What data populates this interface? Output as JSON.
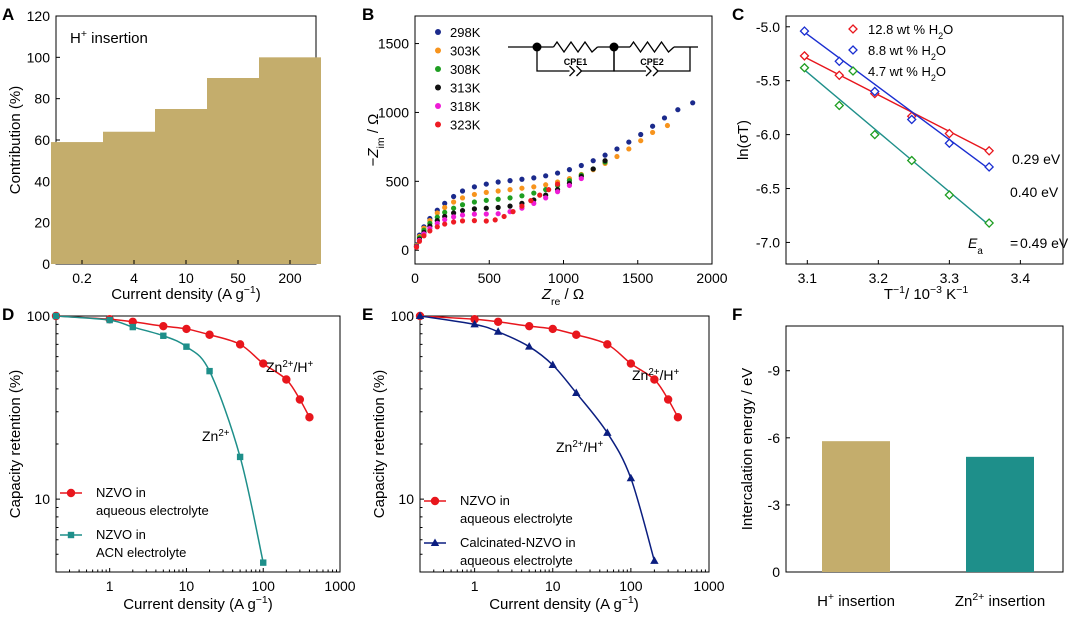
{
  "colors": {
    "tan": "#c4ad6c",
    "teal": "#1e8f8a",
    "red": "#e8161d",
    "navy": "#0b1e80",
    "t298": "#1b2a8c",
    "t303": "#f7941d",
    "t308": "#1f9e22",
    "t313": "#111111",
    "t318": "#ee1cd6",
    "t323": "#ee1c24",
    "c_red": "#e8161d",
    "c_blue": "#1a2ed1",
    "c_green": "#1f9e22"
  },
  "chart_data": [
    {
      "panel": "A",
      "type": "bar",
      "title": "H⁺ insertion",
      "categories": [
        "0.2",
        "4",
        "10",
        "50",
        "200"
      ],
      "values": [
        59,
        64,
        75,
        90,
        100
      ],
      "xlabel": "Current density (A g⁻¹)",
      "ylabel": "Contribution (%)",
      "ylim": [
        0,
        120
      ],
      "yticks": [
        "0",
        "20",
        "40",
        "60",
        "80",
        "100",
        "120"
      ]
    },
    {
      "panel": "B",
      "type": "scatter",
      "xlabel": "Z_re / Ω",
      "ylabel": "−Z_im / Ω",
      "xlim": [
        0,
        2000
      ],
      "ylim": [
        -100,
        1700
      ],
      "xticks": [
        "0",
        "500",
        "1000",
        "1500",
        "2000"
      ],
      "yticks": [
        "0",
        "500",
        "1000",
        "1500"
      ],
      "circuit_labels": [
        "CPE1",
        "CPE2"
      ],
      "series": [
        {
          "name": "298K",
          "points": [
            [
              10,
              40
            ],
            [
              30,
              110
            ],
            [
              60,
              170
            ],
            [
              100,
              230
            ],
            [
              150,
              290
            ],
            [
              200,
              340
            ],
            [
              260,
              390
            ],
            [
              320,
              430
            ],
            [
              400,
              460
            ],
            [
              480,
              480
            ],
            [
              560,
              495
            ],
            [
              640,
              505
            ],
            [
              720,
              515
            ],
            [
              800,
              525
            ],
            [
              880,
              540
            ],
            [
              960,
              560
            ],
            [
              1040,
              585
            ],
            [
              1120,
              615
            ],
            [
              1200,
              650
            ],
            [
              1280,
              690
            ],
            [
              1360,
              735
            ],
            [
              1440,
              785
            ],
            [
              1520,
              840
            ],
            [
              1600,
              900
            ],
            [
              1680,
              960
            ],
            [
              1770,
              1020
            ],
            [
              1870,
              1070
            ]
          ]
        },
        {
          "name": "303K",
          "points": [
            [
              10,
              35
            ],
            [
              30,
              100
            ],
            [
              60,
              160
            ],
            [
              100,
              215
            ],
            [
              150,
              270
            ],
            [
              200,
              310
            ],
            [
              260,
              350
            ],
            [
              320,
              380
            ],
            [
              400,
              405
            ],
            [
              480,
              420
            ],
            [
              560,
              430
            ],
            [
              640,
              440
            ],
            [
              720,
              450
            ],
            [
              800,
              460
            ],
            [
              880,
              475
            ],
            [
              960,
              495
            ],
            [
              1040,
              520
            ],
            [
              1120,
              550
            ],
            [
              1200,
              585
            ],
            [
              1280,
              630
            ],
            [
              1360,
              680
            ],
            [
              1440,
              735
            ],
            [
              1520,
              795
            ],
            [
              1600,
              855
            ],
            [
              1700,
              905
            ]
          ]
        },
        {
          "name": "308K",
          "points": [
            [
              10,
              30
            ],
            [
              30,
              90
            ],
            [
              60,
              145
            ],
            [
              100,
              195
            ],
            [
              150,
              240
            ],
            [
              200,
              275
            ],
            [
              260,
              305
            ],
            [
              320,
              330
            ],
            [
              400,
              350
            ],
            [
              480,
              362
            ],
            [
              560,
              370
            ],
            [
              640,
              380
            ],
            [
              720,
              395
            ],
            [
              800,
              415
            ],
            [
              880,
              440
            ],
            [
              960,
              470
            ],
            [
              1040,
              505
            ],
            [
              1120,
              545
            ],
            [
              1200,
              590
            ],
            [
              1280,
              640
            ]
          ]
        },
        {
          "name": "313K",
          "points": [
            [
              10,
              28
            ],
            [
              30,
              80
            ],
            [
              60,
              130
            ],
            [
              100,
              175
            ],
            [
              150,
              215
            ],
            [
              200,
              245
            ],
            [
              260,
              270
            ],
            [
              320,
              288
            ],
            [
              400,
              300
            ],
            [
              480,
              305
            ],
            [
              560,
              310
            ],
            [
              640,
              320
            ],
            [
              720,
              340
            ],
            [
              800,
              365
            ],
            [
              880,
              400
            ],
            [
              960,
              440
            ],
            [
              1040,
              485
            ],
            [
              1120,
              535
            ],
            [
              1200,
              590
            ],
            [
              1280,
              650
            ]
          ]
        },
        {
          "name": "318K",
          "points": [
            [
              10,
              25
            ],
            [
              30,
              72
            ],
            [
              60,
              118
            ],
            [
              100,
              158
            ],
            [
              150,
              195
            ],
            [
              200,
              222
            ],
            [
              260,
              242
            ],
            [
              320,
              255
            ],
            [
              400,
              262
            ],
            [
              480,
              263
            ],
            [
              560,
              265
            ],
            [
              640,
              280
            ],
            [
              720,
              305
            ],
            [
              800,
              340
            ],
            [
              880,
              380
            ],
            [
              960,
              425
            ],
            [
              1040,
              470
            ],
            [
              1120,
              520
            ]
          ]
        },
        {
          "name": "323K",
          "points": [
            [
              10,
              22
            ],
            [
              30,
              65
            ],
            [
              60,
              105
            ],
            [
              100,
              140
            ],
            [
              150,
              170
            ],
            [
              200,
              190
            ],
            [
              260,
              205
            ],
            [
              320,
              213
            ],
            [
              400,
              215
            ],
            [
              480,
              212
            ],
            [
              540,
              220
            ],
            [
              600,
              245
            ],
            [
              660,
              280
            ],
            [
              720,
              320
            ],
            [
              780,
              360
            ],
            [
              840,
              400
            ],
            [
              900,
              440
            ],
            [
              960,
              480
            ]
          ]
        }
      ]
    },
    {
      "panel": "C",
      "type": "scatter",
      "xlabel": "T⁻¹/ 10⁻³ K⁻¹",
      "ylabel": "ln(σT)",
      "xlim": [
        3.07,
        3.46
      ],
      "ylim": [
        -7.2,
        -4.9
      ],
      "xticks": [
        "3.1",
        "3.2",
        "3.3",
        "3.4"
      ],
      "yticks": [
        "-5.0",
        "-5.5",
        "-6.0",
        "-6.5",
        "-7.0"
      ],
      "x": [
        3.096,
        3.145,
        3.195,
        3.247,
        3.3,
        3.356
      ],
      "series": [
        {
          "name": "12.8 wt % H₂O",
          "legend_main": "12.8 wt % H",
          "values": [
            -5.27,
            -5.45,
            -5.62,
            -5.83,
            -5.99,
            -6.15
          ],
          "fit": [
            [
              3.096,
              -5.28
            ],
            [
              3.356,
              -6.16
            ]
          ],
          "annotation": "0.29 eV"
        },
        {
          "name": "8.8 wt % H₂O",
          "legend_main": "8.8 wt % H",
          "values": [
            -5.04,
            -5.32,
            -5.6,
            -5.86,
            -6.08,
            -6.3
          ],
          "fit": [
            [
              3.096,
              -5.05
            ],
            [
              3.356,
              -6.32
            ]
          ],
          "annotation": "0.40 eV"
        },
        {
          "name": "4.7 wt % H₂O",
          "legend_main": "4.7 wt % H",
          "values": [
            -5.38,
            -5.73,
            -6.0,
            -6.24,
            -6.56,
            -6.82
          ],
          "fit": [
            [
              3.096,
              -5.4
            ],
            [
              3.356,
              -6.84
            ]
          ],
          "annotation": "0.49 eV"
        }
      ],
      "legend_sub": "2",
      "legend_tail": "O",
      "ea_symbol": "E",
      "ea_sub": "a",
      "ea_eq": " = 0.49 eV"
    },
    {
      "panel": "D",
      "type": "line",
      "xscale": "log",
      "yscale": "log",
      "xlabel": "Current density (A g⁻¹)",
      "ylabel": "Capacity retention (%)",
      "xlim": [
        0.2,
        1000
      ],
      "ylim": [
        4,
        100
      ],
      "xticks": [
        "1",
        "10",
        "100",
        "1000"
      ],
      "yticks": [
        "100",
        "10"
      ],
      "series": [
        {
          "name": "NZVO in aqueous electrolyte",
          "legend_lines": [
            "NZVO in",
            "aqueous electrolyte"
          ],
          "marker": "circle",
          "x": [
            0.2,
            1,
            2,
            5,
            10,
            20,
            50,
            100,
            200,
            300,
            400
          ],
          "values": [
            100,
            96,
            93,
            88,
            85,
            79,
            70,
            55,
            45,
            35,
            28
          ],
          "annotation": "Zn²⁺/H⁺"
        },
        {
          "name": "NZVO in ACN electrolyte",
          "legend_lines": [
            "NZVO in",
            "ACN electrolyte"
          ],
          "marker": "square",
          "x": [
            0.2,
            1,
            2,
            5,
            10,
            20,
            50,
            100
          ],
          "values": [
            100,
            95,
            87,
            78,
            68,
            50,
            17,
            4.5
          ],
          "annotation": "Zn²⁺"
        }
      ]
    },
    {
      "panel": "E",
      "type": "line",
      "xscale": "log",
      "yscale": "log",
      "xlabel": "Current density (A g⁻¹)",
      "ylabel": "Capacity retention (%)",
      "xlim": [
        0.2,
        1000
      ],
      "ylim": [
        4,
        100
      ],
      "xticks": [
        "1",
        "10",
        "100",
        "1000"
      ],
      "yticks": [
        "100",
        "10"
      ],
      "series": [
        {
          "name": "NZVO in aqueous electrolyte",
          "legend_lines": [
            "NZVO in",
            "aqueous electrolyte"
          ],
          "marker": "circle",
          "x": [
            0.2,
            1,
            2,
            5,
            10,
            20,
            50,
            100,
            200,
            300,
            400
          ],
          "values": [
            100,
            96,
            93,
            88,
            85,
            79,
            70,
            55,
            45,
            35,
            28
          ],
          "annotation": "Zn²⁺/H⁺"
        },
        {
          "name": "Calcinated-NZVO in aqueous electrolyte",
          "legend_lines": [
            "Calcinated-NZVO in",
            "aqueous electrolyte"
          ],
          "marker": "triangle",
          "x": [
            0.2,
            1,
            2,
            5,
            10,
            20,
            50,
            100,
            200
          ],
          "values": [
            100,
            90,
            82,
            68,
            54,
            38,
            23,
            13,
            4.6
          ],
          "annotation": "Zn²⁺/H⁺"
        }
      ]
    },
    {
      "panel": "F",
      "type": "bar",
      "categories": [
        "H⁺ insertion",
        "Zn²⁺ insertion"
      ],
      "values": [
        -5.85,
        -5.15
      ],
      "ylabel": "Intercalation energy / eV",
      "ylim": [
        0,
        -11
      ],
      "yticks": [
        "0",
        "-3",
        "-6",
        "-9"
      ]
    }
  ]
}
